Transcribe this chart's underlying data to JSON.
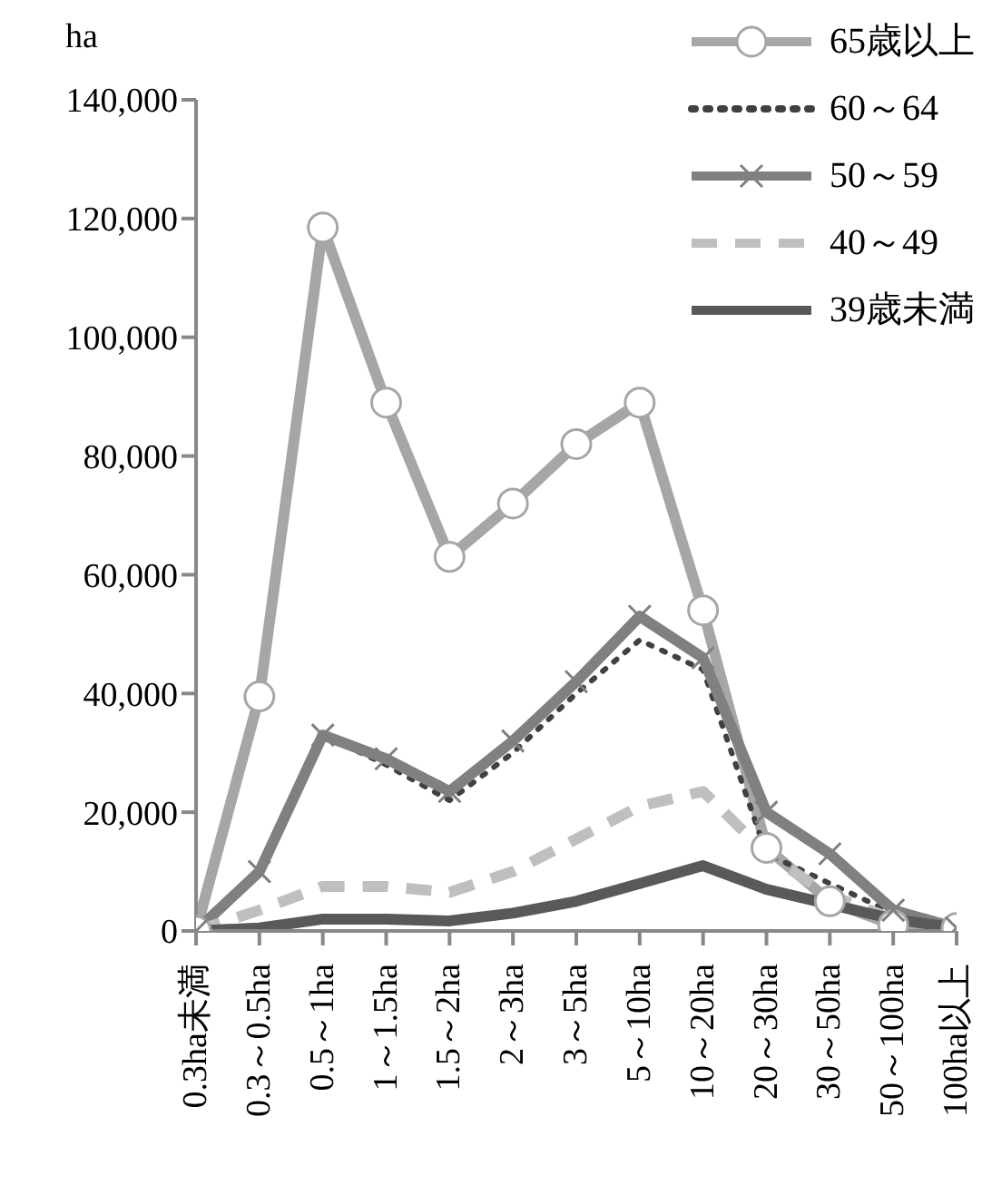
{
  "chart_data": {
    "type": "line",
    "ylabel": "ha",
    "categories": [
      "0.3ha未満",
      "0.3～0.5ha",
      "0.5～1ha",
      "1～1.5ha",
      "1.5～2ha",
      "2～3ha",
      "3～5ha",
      "5～10ha",
      "10～20ha",
      "20～30ha",
      "30～50ha",
      "50～100ha",
      "100ha以上"
    ],
    "series": [
      {
        "name": "65歳以上",
        "color": "#a6a6a6",
        "marker": "circle",
        "line_style": "solid",
        "values": [
          0,
          39500,
          118500,
          89000,
          63000,
          72000,
          82000,
          89000,
          54000,
          14000,
          5000,
          1000,
          500
        ]
      },
      {
        "name": "60～64",
        "color": "#404040",
        "marker": "none",
        "line_style": "dotted",
        "values": [
          0,
          10000,
          33000,
          28000,
          22000,
          30000,
          40000,
          49000,
          44000,
          13000,
          8000,
          3000,
          500
        ]
      },
      {
        "name": "50～59",
        "color": "#808080",
        "marker": "cross",
        "line_style": "solid",
        "values": [
          0,
          10000,
          33000,
          29000,
          23500,
          32000,
          42000,
          53000,
          46000,
          20000,
          13000,
          3500,
          500
        ]
      },
      {
        "name": "40～49",
        "color": "#bfbfbf",
        "marker": "none",
        "line_style": "dashed",
        "values": [
          0,
          3500,
          7500,
          7500,
          6500,
          10000,
          15500,
          21000,
          23500,
          13000,
          6000,
          2000,
          500
        ]
      },
      {
        "name": "39歳未満",
        "color": "#595959",
        "marker": "none",
        "line_style": "solid",
        "values": [
          0,
          500,
          2000,
          2000,
          1700,
          3000,
          5000,
          8000,
          11000,
          7000,
          4500,
          2000,
          500
        ]
      }
    ],
    "ylim": [
      0,
      140000
    ],
    "yticks": [
      {
        "value": 0,
        "label": "0"
      },
      {
        "value": 20000,
        "label": "20,000"
      },
      {
        "value": 40000,
        "label": "40,000"
      },
      {
        "value": 60000,
        "label": "60,000"
      },
      {
        "value": 80000,
        "label": "80,000"
      },
      {
        "value": 100000,
        "label": "100,000"
      },
      {
        "value": 120000,
        "label": "120,000"
      },
      {
        "value": 140000,
        "label": "140,000"
      }
    ],
    "grid": false,
    "legend": "top right"
  }
}
